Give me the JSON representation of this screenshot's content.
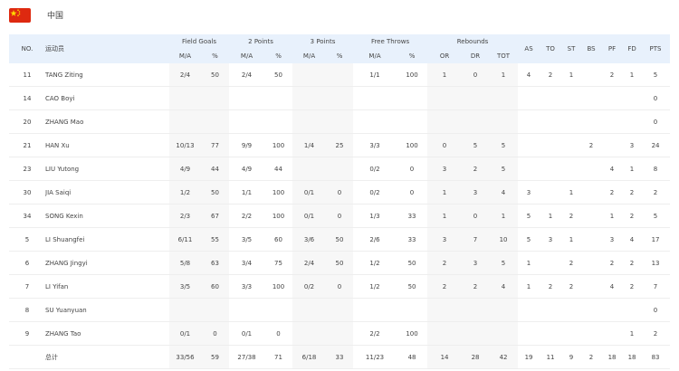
{
  "team": {
    "name": "中国",
    "flag_colors": {
      "field": "#de2910",
      "stars": "#ffde00"
    }
  },
  "header": {
    "no": "NO.",
    "player": "运动员",
    "groups": {
      "fg": "Field Goals",
      "p2": "2 Points",
      "p3": "3 Points",
      "ft": "Free Throws",
      "reb": "Rebounds"
    },
    "sub": {
      "ma": "M/A",
      "pct": "%",
      "or": "OR",
      "dr": "DR",
      "tot": "TOT"
    },
    "single": [
      "AS",
      "TO",
      "ST",
      "BS",
      "PF",
      "FD",
      "PTS"
    ]
  },
  "rows": [
    [
      "11",
      "TANG Ziting",
      "2/4",
      "50",
      "2/4",
      "50",
      "",
      "",
      "1/1",
      "100",
      "1",
      "0",
      "1",
      "4",
      "2",
      "1",
      "",
      "2",
      "1",
      "5"
    ],
    [
      "14",
      "CAO Boyi",
      "",
      "",
      "",
      "",
      "",
      "",
      "",
      "",
      "",
      "",
      "",
      "",
      "",
      "",
      "",
      "",
      "",
      "0"
    ],
    [
      "20",
      "ZHANG Mao",
      "",
      "",
      "",
      "",
      "",
      "",
      "",
      "",
      "",
      "",
      "",
      "",
      "",
      "",
      "",
      "",
      "",
      "0"
    ],
    [
      "21",
      "HAN Xu",
      "10/13",
      "77",
      "9/9",
      "100",
      "1/4",
      "25",
      "3/3",
      "100",
      "0",
      "5",
      "5",
      "",
      "",
      "",
      "2",
      "",
      "3",
      "24"
    ],
    [
      "23",
      "LIU Yutong",
      "4/9",
      "44",
      "4/9",
      "44",
      "",
      "",
      "0/2",
      "0",
      "3",
      "2",
      "5",
      "",
      "",
      "",
      "",
      "4",
      "1",
      "8"
    ],
    [
      "30",
      "JIA Saiqi",
      "1/2",
      "50",
      "1/1",
      "100",
      "0/1",
      "0",
      "0/2",
      "0",
      "1",
      "3",
      "4",
      "3",
      "",
      "1",
      "",
      "2",
      "2",
      "2"
    ],
    [
      "34",
      "SONG Kexin",
      "2/3",
      "67",
      "2/2",
      "100",
      "0/1",
      "0",
      "1/3",
      "33",
      "1",
      "0",
      "1",
      "5",
      "1",
      "2",
      "",
      "1",
      "2",
      "5"
    ],
    [
      "5",
      "LI Shuangfei",
      "6/11",
      "55",
      "3/5",
      "60",
      "3/6",
      "50",
      "2/6",
      "33",
      "3",
      "7",
      "10",
      "5",
      "3",
      "1",
      "",
      "3",
      "4",
      "17"
    ],
    [
      "6",
      "ZHANG Jingyi",
      "5/8",
      "63",
      "3/4",
      "75",
      "2/4",
      "50",
      "1/2",
      "50",
      "2",
      "3",
      "5",
      "1",
      "",
      "2",
      "",
      "2",
      "2",
      "13"
    ],
    [
      "7",
      "LI Yifan",
      "3/5",
      "60",
      "3/3",
      "100",
      "0/2",
      "0",
      "1/2",
      "50",
      "2",
      "2",
      "4",
      "1",
      "2",
      "2",
      "",
      "4",
      "2",
      "7"
    ],
    [
      "8",
      "SU Yuanyuan",
      "",
      "",
      "",
      "",
      "",
      "",
      "",
      "",
      "",
      "",
      "",
      "",
      "",
      "",
      "",
      "",
      "",
      "0"
    ],
    [
      "9",
      "ZHANG Tao",
      "0/1",
      "0",
      "0/1",
      "0",
      "",
      "",
      "2/2",
      "100",
      "",
      "",
      "",
      "",
      "",
      "",
      "",
      "",
      "1",
      "2"
    ],
    [
      "",
      "总计",
      "33/56",
      "59",
      "27/38",
      "71",
      "6/18",
      "33",
      "11/23",
      "48",
      "14",
      "28",
      "42",
      "19",
      "11",
      "9",
      "2",
      "18",
      "18",
      "83"
    ]
  ]
}
